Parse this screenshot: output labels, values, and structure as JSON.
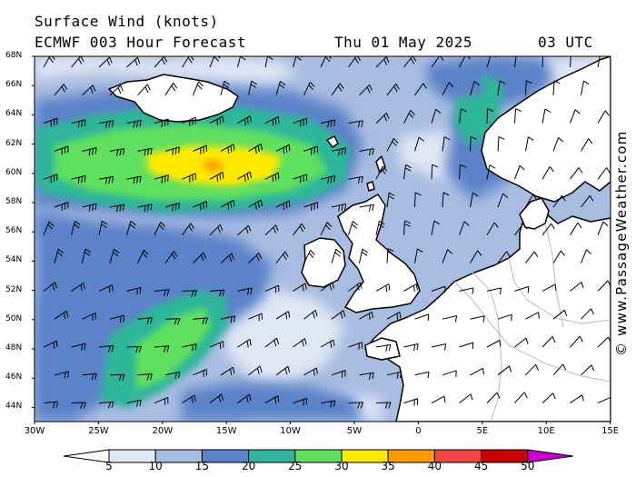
{
  "header": {
    "title": "Surface Wind (knots)",
    "model": "ECMWF 003 Hour Forecast",
    "date": "Thu 01 May 2025",
    "time": "03 UTC"
  },
  "credit": "© www.PassageWeather.com",
  "lat_labels": [
    "68N",
    "66N",
    "64N",
    "62N",
    "60N",
    "58N",
    "56N",
    "54N",
    "52N",
    "50N",
    "48N",
    "46N",
    "44N"
  ],
  "lon_labels": [
    "30W",
    "25W",
    "20W",
    "15W",
    "10W",
    "5W",
    "0",
    "5E",
    "10E",
    "15E"
  ],
  "colorbar": {
    "labels": [
      "5",
      "10",
      "15",
      "20",
      "25",
      "30",
      "35",
      "40",
      "45",
      "50"
    ],
    "colors": [
      "#ffffff",
      "#e0e7f5",
      "#a9bde2",
      "#5c82c9",
      "#2db69a",
      "#60e05e",
      "#ffea00",
      "#ff9a00",
      "#f04545",
      "#c80000",
      "#cc00cc"
    ]
  },
  "palette": {
    "sea_base": "#a9bde2",
    "sea_light": "#e0e7f5",
    "sea_mid": "#5c82c9",
    "teal": "#2db69a",
    "green": "#60e05e",
    "yellow": "#ffea00",
    "orange": "#ff9a00",
    "land": "#ffffff",
    "border": "#bbbbbb"
  }
}
